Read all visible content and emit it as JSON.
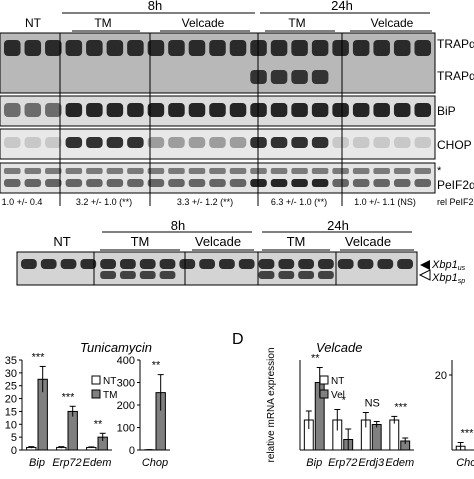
{
  "western": {
    "timepoints": [
      "8h",
      "24h"
    ],
    "groups": [
      "NT",
      "TM",
      "Velcade",
      "TM",
      "Velcade"
    ],
    "blot_labels": [
      "TRAPα",
      "TRAPα",
      "BiP",
      "CHOP",
      "*",
      "PeIF2α"
    ],
    "blot_label_subs": [
      "",
      "",
      "",
      "",
      "",
      ""
    ],
    "ratio_values": [
      "1.0 +/- 0.4",
      "3.2 +/- 1.0 (**)",
      "3.3 +/- 1.2 (**)",
      "6.3 +/- 1.0 (**)",
      "1.0 +/- 1.1 (NS)"
    ],
    "ratio_label": "rel PeIF2α"
  },
  "gel": {
    "timepoints": [
      "8h",
      "24h"
    ],
    "groups": [
      "NT",
      "TM",
      "Velcade",
      "TM",
      "Velcade"
    ],
    "band_labels": [
      {
        "main": "Xbp1",
        "sub": "us"
      },
      {
        "main": "Xbp1",
        "sub": "sp"
      }
    ]
  },
  "charts": {
    "panel_letters": [
      "",
      "D"
    ],
    "chart_data": [
      {
        "type": "bar",
        "title": "Tunicamycin",
        "categories": [
          "Bip",
          "Erp72",
          "Edem"
        ],
        "series": [
          {
            "name": "NT",
            "values": [
              1,
              1,
              1
            ],
            "errors": [
              0.3,
              0.3,
              0.2
            ],
            "color": "#ffffff"
          },
          {
            "name": "TM",
            "values": [
              27.5,
              15,
              5
            ],
            "errors": [
              5,
              2,
              1.5
            ],
            "color": "#808080"
          }
        ],
        "significance": [
          "***",
          "***",
          "**"
        ],
        "ylim": [
          0,
          35
        ],
        "yticks": [
          0,
          5,
          10,
          15,
          20,
          25,
          30,
          35
        ],
        "legend": "top-right"
      },
      {
        "type": "bar",
        "title": "",
        "categories": [
          "Chop"
        ],
        "series": [
          {
            "name": "NT",
            "values": [
              1
            ],
            "errors": [
              0.5
            ],
            "color": "#ffffff"
          },
          {
            "name": "TM",
            "values": [
              255
            ],
            "errors": [
              80
            ],
            "color": "#808080"
          }
        ],
        "significance": [
          "**"
        ],
        "ylim": [
          0,
          400
        ],
        "yticks": [
          0,
          100,
          200,
          300,
          400
        ]
      },
      {
        "type": "bar",
        "title": "Velcade",
        "ylabel": "relative mRNA expression",
        "categories": [
          "Bip",
          "Erp72",
          "Erdj3",
          "Edem"
        ],
        "series": [
          {
            "name": "NT",
            "values": [
              1,
              1,
              1,
              1
            ],
            "errors": [
              0.3,
              0.35,
              0.25,
              0.12
            ],
            "color": "#ffffff"
          },
          {
            "name": "Vel",
            "values": [
              2.25,
              0.35,
              0.85,
              0.3
            ],
            "errors": [
              0.5,
              0.35,
              0.1,
              0.1
            ],
            "color": "#808080"
          }
        ],
        "significance": [
          "**",
          "*",
          "NS",
          "***"
        ],
        "ylim": [
          0,
          3.0
        ],
        "legend": "top-right"
      },
      {
        "type": "bar",
        "title": "",
        "categories": [
          "Chc"
        ],
        "series": [
          {
            "name": "NT",
            "values": [
              1
            ],
            "errors": [
              1
            ],
            "color": "#ffffff"
          },
          {
            "name": "Vel",
            "values": [
              0
            ],
            "errors": [
              0
            ],
            "color": "#808080"
          }
        ],
        "significance": [
          "***"
        ],
        "yticks": [
          20
        ]
      }
    ]
  }
}
